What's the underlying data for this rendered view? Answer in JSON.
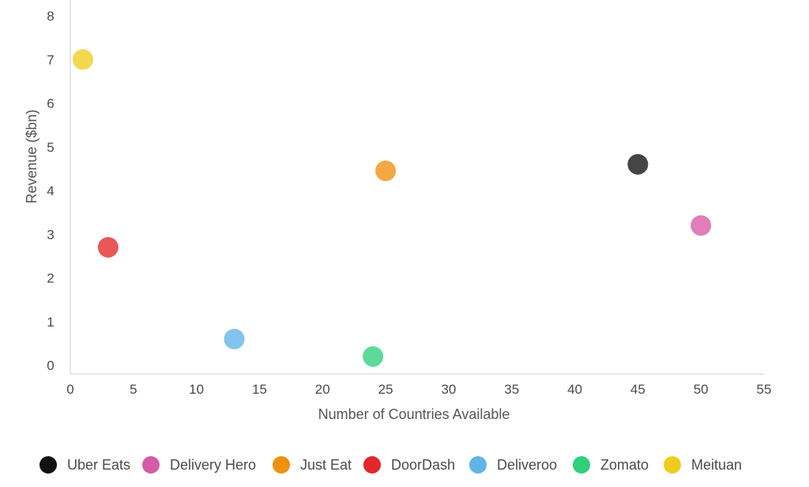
{
  "chart_data": {
    "type": "scatter",
    "xlabel": "Number of Countries Available",
    "ylabel": "Revenue ($bn)",
    "xlim": [
      0,
      55
    ],
    "ylim": [
      0,
      8
    ],
    "xticks": [
      0,
      5,
      10,
      15,
      20,
      25,
      30,
      35,
      40,
      45,
      50,
      55
    ],
    "yticks": [
      0,
      1,
      2,
      3,
      4,
      5,
      6,
      7,
      8
    ],
    "grid": false,
    "legend_position": "bottom",
    "series": [
      {
        "name": "Uber Eats",
        "color": "#111111",
        "x": 45,
        "y": 4.6
      },
      {
        "name": "Delivery Hero",
        "color": "#d65aa6",
        "x": 50,
        "y": 3.2
      },
      {
        "name": "Just Eat",
        "color": "#f0900f",
        "x": 25,
        "y": 4.45
      },
      {
        "name": "DoorDash",
        "color": "#e5262a",
        "x": 3,
        "y": 2.7
      },
      {
        "name": "Deliveroo",
        "color": "#5fb4e8",
        "x": 13,
        "y": 0.6
      },
      {
        "name": "Zomato",
        "color": "#2fcf7c",
        "x": 24,
        "y": 0.2
      },
      {
        "name": "Meituan",
        "color": "#f0cc1e",
        "x": 1,
        "y": 7.0
      }
    ]
  }
}
